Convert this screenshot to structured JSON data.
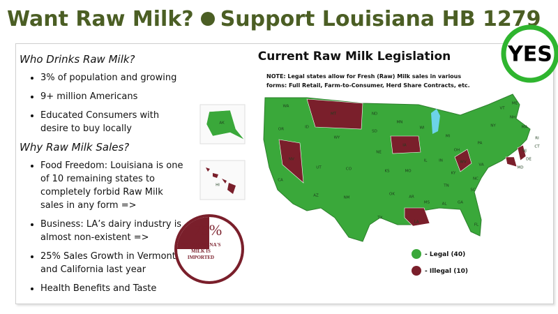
{
  "header": {
    "title_left": "Want Raw Milk?",
    "title_right": "Support Louisiana HB 1279",
    "badge": "YES"
  },
  "sections": [
    {
      "heading": "Who Drinks Raw Milk?",
      "bullets": [
        "3% of population and growing",
        "9+ million Americans",
        "Educated Consumers with desire to buy locally"
      ]
    },
    {
      "heading": "Why Raw Milk Sales?",
      "bullets": [
        "Food Freedom:  Louisiana is one of 10 remaining states to completely forbid Raw Milk sales in any form =>",
        "Business: LA’s dairy industry is almost non-existent =>",
        "25% Sales Growth in Vermont and California last year",
        "Health Benefits and Taste"
      ]
    }
  ],
  "stat": {
    "value": 75,
    "label": "75%",
    "caption": [
      "OF LOUISIANA'S",
      "MILK IS",
      "IMPORTED"
    ]
  },
  "map": {
    "title": "Current Raw Milk Legislation",
    "note": [
      "NOTE: Legal states allow for Fresh (Raw) Milk sales in various",
      "forms:  Full Retail, Farm-to-Consumer, Herd Share Contracts, etc."
    ],
    "legend": [
      {
        "label": "- Legal (40)",
        "color": "#3aa83a"
      },
      {
        "label": "- Illegal (10)",
        "color": "#7a1f2b"
      }
    ],
    "states": [
      "AK",
      "HI",
      "WA",
      "OR",
      "CA",
      "NV",
      "ID",
      "MT",
      "WY",
      "UT",
      "AZ",
      "CO",
      "NM",
      "ND",
      "SD",
      "NE",
      "KS",
      "OK",
      "TX",
      "MN",
      "IA",
      "MO",
      "AR",
      "LA",
      "WI",
      "IL",
      "MS",
      "AL",
      "MI",
      "IN",
      "OH",
      "KY",
      "TN",
      "GA",
      "FL",
      "SC",
      "NC",
      "VA",
      "WV",
      "PA",
      "NY",
      "VT",
      "NH",
      "ME",
      "MA",
      "RI",
      "CT",
      "NJ",
      "DE",
      "MD"
    ]
  }
}
